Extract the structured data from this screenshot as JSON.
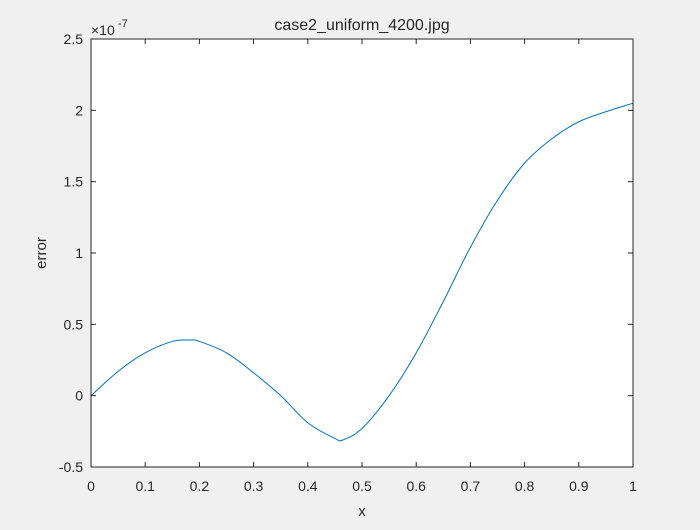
{
  "chart_data": {
    "type": "line",
    "title": "case2_uniform_4200.jpg",
    "xlabel": "x",
    "ylabel": "error",
    "xlim": [
      0,
      1
    ],
    "ylim": [
      -0.5,
      2.5
    ],
    "y_exponent_label": "×10",
    "y_exponent_power": "-7",
    "x_ticks": [
      0,
      0.1,
      0.2,
      0.3,
      0.4,
      0.5,
      0.6,
      0.7,
      0.8,
      0.9,
      1
    ],
    "x_tick_labels": [
      "0",
      "0.1",
      "0.2",
      "0.3",
      "0.4",
      "0.5",
      "0.6",
      "0.7",
      "0.8",
      "0.9",
      "1"
    ],
    "y_ticks": [
      -0.5,
      0,
      0.5,
      1,
      1.5,
      2,
      2.5
    ],
    "y_tick_labels": [
      "-0.5",
      "0",
      "0.5",
      "1",
      "1.5",
      "2",
      "2.5"
    ],
    "grid": false,
    "series": [
      {
        "name": "error",
        "color": "#0072bd",
        "x": [
          0,
          0.05,
          0.1,
          0.15,
          0.18,
          0.2,
          0.25,
          0.3,
          0.35,
          0.4,
          0.45,
          0.465,
          0.5,
          0.55,
          0.6,
          0.65,
          0.7,
          0.75,
          0.8,
          0.85,
          0.9,
          0.95,
          1
        ],
        "y": [
          0,
          0.17,
          0.3,
          0.38,
          0.39,
          0.38,
          0.3,
          0.16,
          0.0,
          -0.19,
          -0.3,
          -0.31,
          -0.23,
          0.0,
          0.3,
          0.66,
          1.04,
          1.37,
          1.63,
          1.8,
          1.92,
          1.99,
          2.05
        ]
      }
    ]
  }
}
